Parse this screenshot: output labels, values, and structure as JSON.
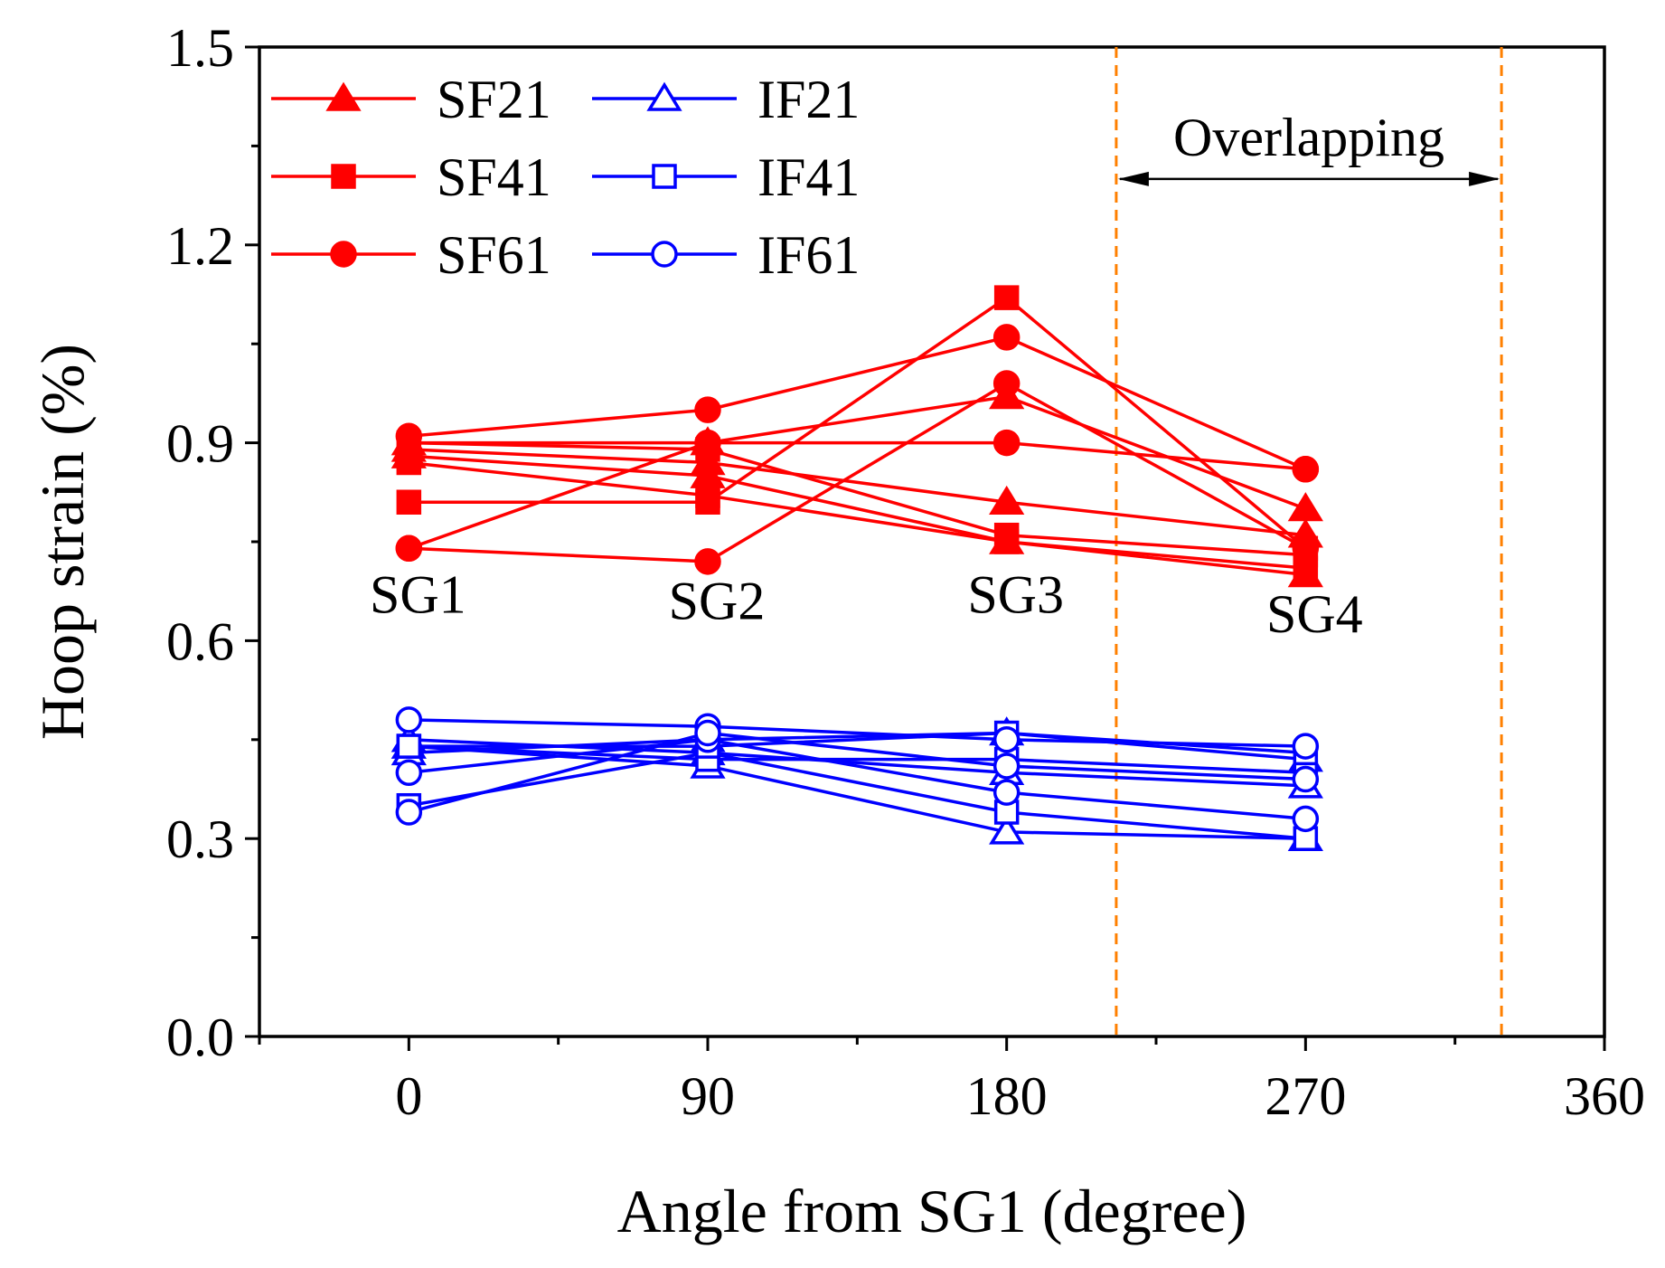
{
  "chart_data": {
    "type": "line",
    "xlabel": "Angle from SG1 (degree)",
    "ylabel": "Hoop strain (%)",
    "xlim": [
      -45,
      360
    ],
    "ylim": [
      0.0,
      1.5
    ],
    "x_ticks": [
      0,
      90,
      180,
      270,
      360
    ],
    "x_tick_labels": [
      "0",
      "90",
      "180",
      "270",
      "360"
    ],
    "y_ticks": [
      0.0,
      0.3,
      0.6,
      0.9,
      1.2,
      1.5
    ],
    "y_tick_labels": [
      "0.0",
      "0.3",
      "0.6",
      "0.9",
      "1.2",
      "1.5"
    ],
    "x": [
      0,
      90,
      180,
      270
    ],
    "colors": {
      "SF": "#ff0000",
      "IF": "#0000ff",
      "overlap": "#ff8000"
    },
    "series": [
      {
        "name": "SF21",
        "group": "SF",
        "marker": "triangle-filled",
        "values": [
          0.9,
          0.9,
          0.97,
          0.8
        ]
      },
      {
        "name": "SF21",
        "group": "SF",
        "marker": "triangle-filled",
        "values": [
          0.89,
          0.87,
          0.81,
          0.76
        ]
      },
      {
        "name": "SF21",
        "group": "SF",
        "marker": "triangle-filled",
        "values": [
          0.88,
          0.85,
          0.75,
          0.7
        ]
      },
      {
        "name": "SF41",
        "group": "SF",
        "marker": "square-filled",
        "values": [
          0.81,
          0.81,
          1.12,
          0.74
        ]
      },
      {
        "name": "SF41",
        "group": "SF",
        "marker": "square-filled",
        "values": [
          0.87,
          0.82,
          0.75,
          0.71
        ]
      },
      {
        "name": "SF41",
        "group": "SF",
        "marker": "square-filled",
        "values": [
          0.9,
          0.89,
          0.76,
          0.73
        ]
      },
      {
        "name": "SF61",
        "group": "SF",
        "marker": "circle-filled",
        "values": [
          0.91,
          0.95,
          1.06,
          0.86
        ]
      },
      {
        "name": "SF61",
        "group": "SF",
        "marker": "circle-filled",
        "values": [
          0.74,
          0.72,
          0.99,
          0.74
        ]
      },
      {
        "name": "SF61",
        "group": "SF",
        "marker": "circle-filled",
        "values": [
          0.74,
          0.9,
          0.9,
          0.86
        ]
      },
      {
        "name": "IF21",
        "group": "IF",
        "marker": "triangle-open",
        "values": [
          0.44,
          0.41,
          0.31,
          0.3
        ]
      },
      {
        "name": "IF21",
        "group": "IF",
        "marker": "triangle-open",
        "values": [
          0.45,
          0.43,
          0.4,
          0.38
        ]
      },
      {
        "name": "IF21",
        "group": "IF",
        "marker": "triangle-open",
        "values": [
          0.43,
          0.45,
          0.46,
          0.42
        ]
      },
      {
        "name": "IF41",
        "group": "IF",
        "marker": "square-open",
        "values": [
          0.35,
          0.43,
          0.34,
          0.3
        ]
      },
      {
        "name": "IF41",
        "group": "IF",
        "marker": "square-open",
        "values": [
          0.44,
          0.42,
          0.42,
          0.4
        ]
      },
      {
        "name": "IF41",
        "group": "IF",
        "marker": "square-open",
        "values": [
          0.44,
          0.44,
          0.46,
          0.43
        ]
      },
      {
        "name": "IF61",
        "group": "IF",
        "marker": "circle-open",
        "values": [
          0.48,
          0.47,
          0.45,
          0.44
        ]
      },
      {
        "name": "IF61",
        "group": "IF",
        "marker": "circle-open",
        "values": [
          0.4,
          0.45,
          0.37,
          0.33
        ]
      },
      {
        "name": "IF61",
        "group": "IF",
        "marker": "circle-open",
        "values": [
          0.34,
          0.46,
          0.41,
          0.39
        ]
      }
    ],
    "legend": {
      "placement": "top-left",
      "entries": [
        {
          "label": "SF21",
          "group": "SF",
          "marker": "triangle-filled"
        },
        {
          "label": "SF41",
          "group": "SF",
          "marker": "square-filled"
        },
        {
          "label": "SF61",
          "group": "SF",
          "marker": "circle-filled"
        },
        {
          "label": "IF21",
          "group": "IF",
          "marker": "triangle-open"
        },
        {
          "label": "IF41",
          "group": "IF",
          "marker": "square-open"
        },
        {
          "label": "IF61",
          "group": "IF",
          "marker": "circle-open"
        }
      ]
    },
    "sg_labels": [
      {
        "text": "SG1",
        "x": 0,
        "y": 0.67
      },
      {
        "text": "SG2",
        "x": 90,
        "y": 0.66
      },
      {
        "text": "SG3",
        "x": 180,
        "y": 0.67
      },
      {
        "text": "SG4",
        "x": 270,
        "y": 0.64
      }
    ],
    "overlap": {
      "label": "Overlapping",
      "x_start": 213,
      "x_end": 329,
      "arrow_y": 1.3
    }
  }
}
